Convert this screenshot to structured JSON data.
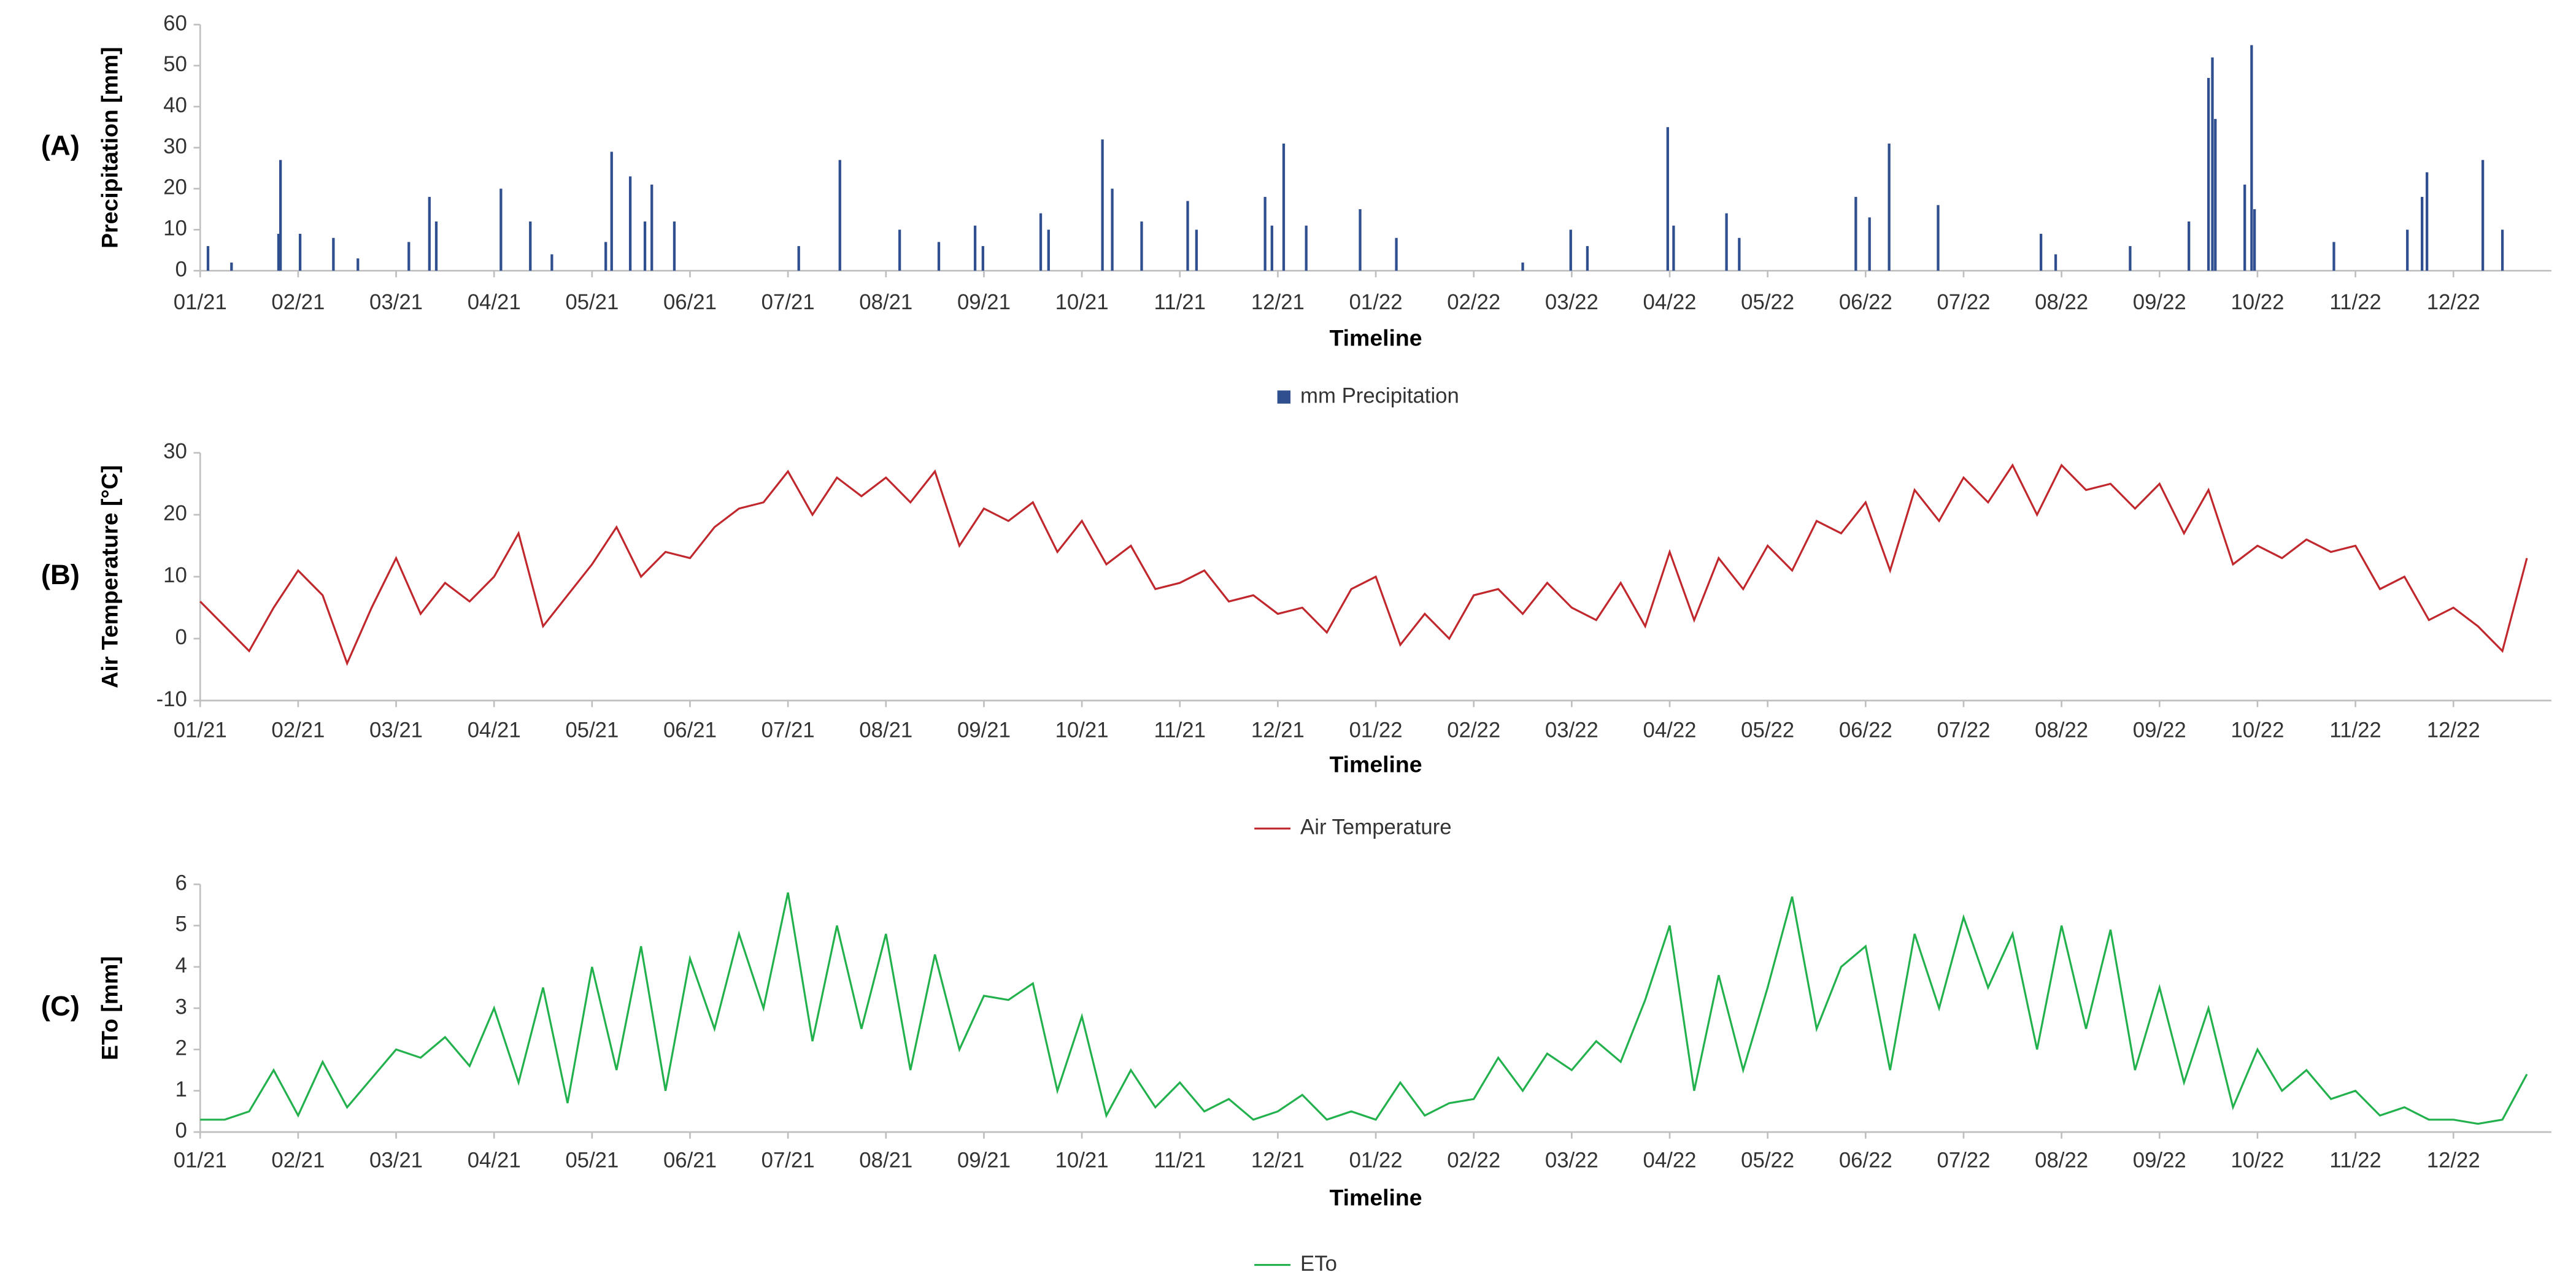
{
  "chart_data": [
    {
      "type": "bar",
      "panel": "(A)",
      "ylabel": "Precipitation [mm]",
      "xlabel": "Timeline",
      "xlim": [
        0,
        24
      ],
      "xticks": [
        {
          "value": 0,
          "label": "01/21"
        },
        {
          "value": 1,
          "label": "02/21"
        },
        {
          "value": 2,
          "label": "03/21"
        },
        {
          "value": 3,
          "label": "04/21"
        },
        {
          "value": 4,
          "label": "05/21"
        },
        {
          "value": 5,
          "label": "06/21"
        },
        {
          "value": 6,
          "label": "07/21"
        },
        {
          "value": 7,
          "label": "08/21"
        },
        {
          "value": 8,
          "label": "09/21"
        },
        {
          "value": 9,
          "label": "10/21"
        },
        {
          "value": 10,
          "label": "11/21"
        },
        {
          "value": 11,
          "label": "12/21"
        },
        {
          "value": 12,
          "label": "01/22"
        },
        {
          "value": 13,
          "label": "02/22"
        },
        {
          "value": 14,
          "label": "03/22"
        },
        {
          "value": 15,
          "label": "04/22"
        },
        {
          "value": 16,
          "label": "05/22"
        },
        {
          "value": 17,
          "label": "06/22"
        },
        {
          "value": 18,
          "label": "07/22"
        },
        {
          "value": 19,
          "label": "08/22"
        },
        {
          "value": 20,
          "label": "09/22"
        },
        {
          "value": 21,
          "label": "10/22"
        },
        {
          "value": 22,
          "label": "11/22"
        },
        {
          "value": 23,
          "label": "12/22"
        }
      ],
      "ylim": [
        0,
        60
      ],
      "yticks": [
        0,
        10,
        20,
        30,
        40,
        50,
        60
      ],
      "series": [
        {
          "name": "mm Precipitation",
          "color": "#2f4f8f",
          "x": [
            0.08,
            0.32,
            0.8,
            0.82,
            1.02,
            1.36,
            1.61,
            2.13,
            2.34,
            2.41,
            3.07,
            3.37,
            3.59,
            4.14,
            4.2,
            4.39,
            4.54,
            4.61,
            4.84,
            6.11,
            6.53,
            7.14,
            7.54,
            7.91,
            7.99,
            8.58,
            8.66,
            9.21,
            9.31,
            9.61,
            10.08,
            10.17,
            10.87,
            10.94,
            11.06,
            11.29,
            11.84,
            12.21,
            13.5,
            13.99,
            14.16,
            14.98,
            15.04,
            15.58,
            15.71,
            16.9,
            17.04,
            17.24,
            17.74,
            18.79,
            18.94,
            19.7,
            20.3,
            20.5,
            20.54,
            20.57,
            20.87,
            20.94,
            20.97,
            21.78,
            22.53,
            22.68,
            22.73,
            23.3,
            23.5
          ],
          "values": [
            6,
            2,
            9,
            27,
            9,
            8,
            3,
            7,
            18,
            12,
            20,
            12,
            4,
            7,
            29,
            23,
            12,
            21,
            12,
            6,
            27,
            10,
            7,
            11,
            6,
            14,
            10,
            32,
            20,
            12,
            17,
            10,
            18,
            11,
            31,
            11,
            15,
            8,
            2,
            10,
            6,
            35,
            11,
            14,
            8,
            18,
            13,
            31,
            16,
            9,
            4,
            6,
            12,
            47,
            52,
            37,
            21,
            55,
            15,
            7,
            10,
            18,
            24,
            27,
            10
          ]
        }
      ]
    },
    {
      "type": "line",
      "panel": "(B)",
      "ylabel": "Air Temperature [°C]",
      "xlabel": "Timeline",
      "xlim": [
        0,
        24
      ],
      "xticks": [
        {
          "value": 0,
          "label": "01/21"
        },
        {
          "value": 1,
          "label": "02/21"
        },
        {
          "value": 2,
          "label": "03/21"
        },
        {
          "value": 3,
          "label": "04/21"
        },
        {
          "value": 4,
          "label": "05/21"
        },
        {
          "value": 5,
          "label": "06/21"
        },
        {
          "value": 6,
          "label": "07/21"
        },
        {
          "value": 7,
          "label": "08/21"
        },
        {
          "value": 8,
          "label": "09/21"
        },
        {
          "value": 9,
          "label": "10/21"
        },
        {
          "value": 10,
          "label": "11/21"
        },
        {
          "value": 11,
          "label": "12/21"
        },
        {
          "value": 12,
          "label": "01/22"
        },
        {
          "value": 13,
          "label": "02/22"
        },
        {
          "value": 14,
          "label": "03/22"
        },
        {
          "value": 15,
          "label": "04/22"
        },
        {
          "value": 16,
          "label": "05/22"
        },
        {
          "value": 17,
          "label": "06/22"
        },
        {
          "value": 18,
          "label": "07/22"
        },
        {
          "value": 19,
          "label": "08/22"
        },
        {
          "value": 20,
          "label": "09/22"
        },
        {
          "value": 21,
          "label": "10/22"
        },
        {
          "value": 22,
          "label": "11/22"
        },
        {
          "value": 23,
          "label": "12/22"
        }
      ],
      "ylim": [
        -10,
        30
      ],
      "yticks": [
        -10,
        0,
        10,
        20,
        30
      ],
      "series": [
        {
          "name": "Air Temperature",
          "color": "#c0282d",
          "x": [
            0,
            0.25,
            0.5,
            0.75,
            1,
            1.25,
            1.5,
            1.75,
            2,
            2.25,
            2.5,
            2.75,
            3,
            3.25,
            3.5,
            3.75,
            4,
            4.25,
            4.5,
            4.75,
            5,
            5.25,
            5.5,
            5.75,
            6,
            6.25,
            6.5,
            6.75,
            7,
            7.25,
            7.5,
            7.75,
            8,
            8.25,
            8.5,
            8.75,
            9,
            9.25,
            9.5,
            9.75,
            10,
            10.25,
            10.5,
            10.75,
            11,
            11.25,
            11.5,
            11.75,
            12,
            12.25,
            12.5,
            12.75,
            13,
            13.25,
            13.5,
            13.75,
            14,
            14.25,
            14.5,
            14.75,
            15,
            15.25,
            15.5,
            15.75,
            16,
            16.25,
            16.5,
            16.75,
            17,
            17.25,
            17.5,
            17.75,
            18,
            18.25,
            18.5,
            18.75,
            19,
            19.25,
            19.5,
            19.75,
            20,
            20.25,
            20.5,
            20.75,
            21,
            21.25,
            21.5,
            21.75,
            22,
            22.25,
            22.5,
            22.75,
            23,
            23.25,
            23.5,
            23.75
          ],
          "values": [
            6,
            2,
            -2,
            5,
            11,
            7,
            -4,
            5,
            13,
            4,
            9,
            6,
            10,
            17,
            2,
            7,
            12,
            18,
            10,
            14,
            13,
            18,
            21,
            22,
            27,
            20,
            26,
            23,
            26,
            22,
            27,
            15,
            21,
            19,
            22,
            14,
            19,
            12,
            15,
            8,
            9,
            11,
            6,
            7,
            4,
            5,
            1,
            8,
            10,
            -1,
            4,
            0,
            7,
            8,
            4,
            9,
            5,
            3,
            9,
            2,
            14,
            3,
            13,
            8,
            15,
            11,
            19,
            17,
            22,
            11,
            24,
            19,
            26,
            22,
            28,
            20,
            28,
            24,
            25,
            21,
            25,
            17,
            24,
            12,
            15,
            13,
            16,
            14,
            15,
            8,
            10,
            3,
            5,
            2,
            -2,
            13
          ]
        }
      ]
    },
    {
      "type": "line",
      "panel": "(C)",
      "ylabel": "ETo [mm]",
      "xlabel": "Timeline",
      "xlim": [
        0,
        24
      ],
      "xticks": [
        {
          "value": 0,
          "label": "01/21"
        },
        {
          "value": 1,
          "label": "02/21"
        },
        {
          "value": 2,
          "label": "03/21"
        },
        {
          "value": 3,
          "label": "04/21"
        },
        {
          "value": 4,
          "label": "05/21"
        },
        {
          "value": 5,
          "label": "06/21"
        },
        {
          "value": 6,
          "label": "07/21"
        },
        {
          "value": 7,
          "label": "08/21"
        },
        {
          "value": 8,
          "label": "09/21"
        },
        {
          "value": 9,
          "label": "10/21"
        },
        {
          "value": 10,
          "label": "11/21"
        },
        {
          "value": 11,
          "label": "12/21"
        },
        {
          "value": 12,
          "label": "01/22"
        },
        {
          "value": 13,
          "label": "02/22"
        },
        {
          "value": 14,
          "label": "03/22"
        },
        {
          "value": 15,
          "label": "04/22"
        },
        {
          "value": 16,
          "label": "05/22"
        },
        {
          "value": 17,
          "label": "06/22"
        },
        {
          "value": 18,
          "label": "07/22"
        },
        {
          "value": 19,
          "label": "08/22"
        },
        {
          "value": 20,
          "label": "09/22"
        },
        {
          "value": 21,
          "label": "10/22"
        },
        {
          "value": 22,
          "label": "11/22"
        },
        {
          "value": 23,
          "label": "12/22"
        }
      ],
      "ylim": [
        0,
        6
      ],
      "yticks": [
        0,
        1,
        2,
        3,
        4,
        5,
        6
      ],
      "series": [
        {
          "name": "ETo",
          "color": "#22b14c",
          "x": [
            0,
            0.25,
            0.5,
            0.75,
            1,
            1.25,
            1.5,
            1.75,
            2,
            2.25,
            2.5,
            2.75,
            3,
            3.25,
            3.5,
            3.75,
            4,
            4.25,
            4.5,
            4.75,
            5,
            5.25,
            5.5,
            5.75,
            6,
            6.25,
            6.5,
            6.75,
            7,
            7.25,
            7.5,
            7.75,
            8,
            8.25,
            8.5,
            8.75,
            9,
            9.25,
            9.5,
            9.75,
            10,
            10.25,
            10.5,
            10.75,
            11,
            11.25,
            11.5,
            11.75,
            12,
            12.25,
            12.5,
            12.75,
            13,
            13.25,
            13.5,
            13.75,
            14,
            14.25,
            14.5,
            14.75,
            15,
            15.25,
            15.5,
            15.75,
            16,
            16.25,
            16.5,
            16.75,
            17,
            17.25,
            17.5,
            17.75,
            18,
            18.25,
            18.5,
            18.75,
            19,
            19.25,
            19.5,
            19.75,
            20,
            20.25,
            20.5,
            20.75,
            21,
            21.25,
            21.5,
            21.75,
            22,
            22.25,
            22.5,
            22.75,
            23,
            23.25,
            23.5,
            23.75
          ],
          "values": [
            0.3,
            0.3,
            0.5,
            1.5,
            0.4,
            1.7,
            0.6,
            1.3,
            2.0,
            1.8,
            2.3,
            1.6,
            3.0,
            1.2,
            3.5,
            0.7,
            4.0,
            1.5,
            4.5,
            1.0,
            4.2,
            2.5,
            4.8,
            3.0,
            5.8,
            2.2,
            5.0,
            2.5,
            4.8,
            1.5,
            4.3,
            2.0,
            3.3,
            3.2,
            3.6,
            1.0,
            2.8,
            0.4,
            1.5,
            0.6,
            1.2,
            0.5,
            0.8,
            0.3,
            0.5,
            0.9,
            0.3,
            0.5,
            0.3,
            1.2,
            0.4,
            0.7,
            0.8,
            1.8,
            1.0,
            1.9,
            1.5,
            2.2,
            1.7,
            3.2,
            5.0,
            1.0,
            3.8,
            1.5,
            3.5,
            5.7,
            2.5,
            4.0,
            4.5,
            1.5,
            4.8,
            3.0,
            5.2,
            3.5,
            4.8,
            2.0,
            5.0,
            2.5,
            4.9,
            1.5,
            3.5,
            1.2,
            3.0,
            0.6,
            2.0,
            1.0,
            1.5,
            0.8,
            1.0,
            0.4,
            0.6,
            0.3,
            0.3,
            0.2,
            0.3,
            1.4
          ]
        }
      ]
    }
  ]
}
